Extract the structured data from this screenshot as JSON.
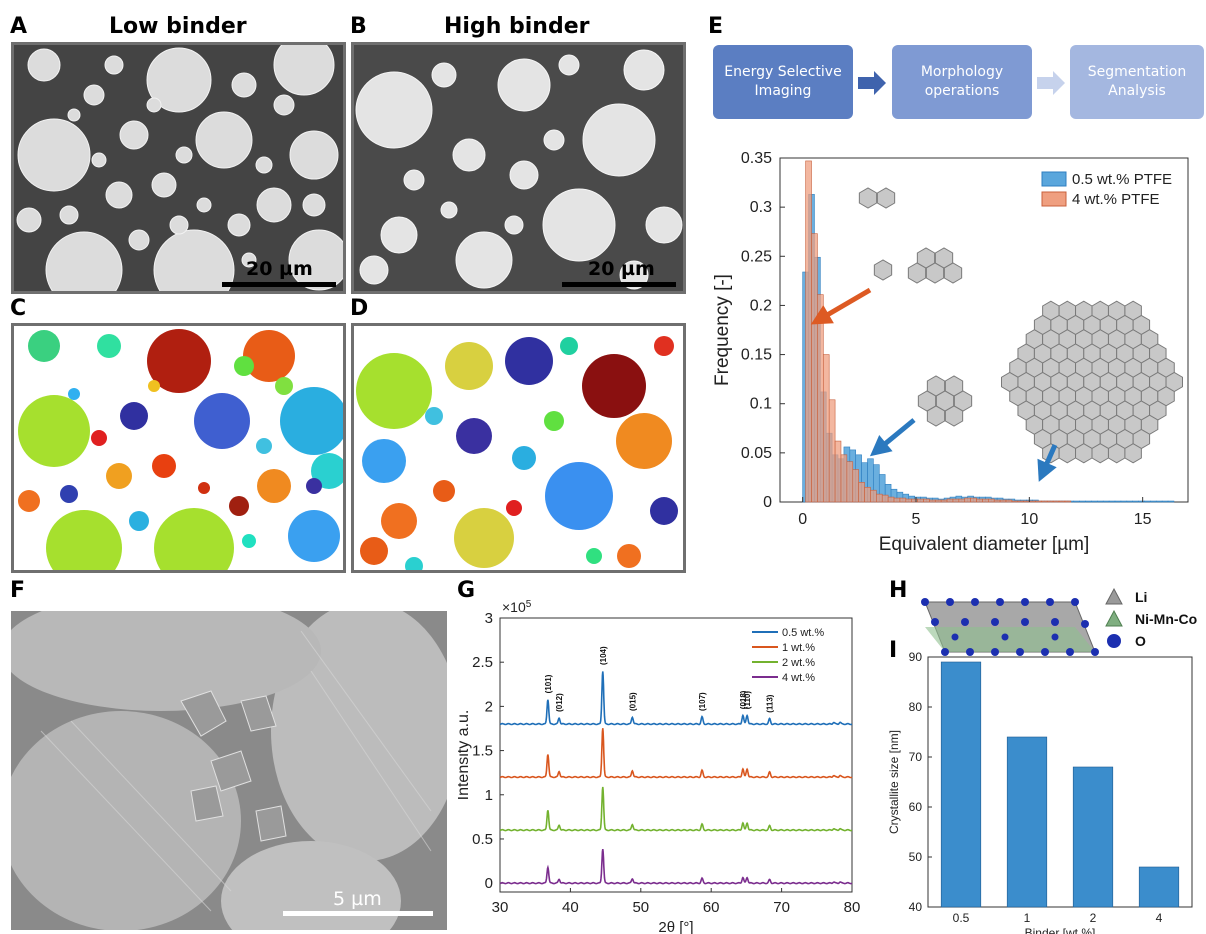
{
  "panels": {
    "A": {
      "letter": "A",
      "title": "Low binder",
      "scalebar": "20 µm"
    },
    "B": {
      "letter": "B",
      "title": "High binder",
      "scalebar": "20 µm"
    },
    "C": {
      "letter": "C"
    },
    "D": {
      "letter": "D"
    },
    "E": {
      "letter": "E"
    },
    "F": {
      "letter": "F",
      "scalebar": "5 µm"
    },
    "G": {
      "letter": "G"
    },
    "H": {
      "letter": "H"
    },
    "I": {
      "letter": "I"
    }
  },
  "flow": {
    "steps": [
      "Energy Selective Imaging",
      "Morphology operations",
      "Segmentation Analysis"
    ],
    "colors": [
      "#5b7ec2",
      "#7f9ad3",
      "#a4b7e0"
    ]
  },
  "crystal": {
    "legend": [
      {
        "label": "Li",
        "color": "#9a9a9a"
      },
      {
        "label": "Ni-Mn-Co",
        "color": "#7fae80"
      },
      {
        "label": "O",
        "color": "#1c2fb0"
      }
    ]
  },
  "chart_data": [
    {
      "type": "bar",
      "panel": "E",
      "xlabel": "Equivalent diameter [µm]",
      "ylabel": "Frequency [-]",
      "xlim": [
        -1,
        17
      ],
      "ylim": [
        0,
        0.35
      ],
      "xticks": [
        0,
        5,
        10,
        15
      ],
      "yticks": [
        0,
        0.05,
        0.1,
        0.15,
        0.2,
        0.25,
        0.3,
        0.35
      ],
      "ytick_labels": [
        "0",
        "0.05",
        "0.1",
        "0.15",
        "0.2",
        "0.25",
        "0.3",
        "0.35"
      ],
      "bin_width": 0.26,
      "legend_position": "top-right",
      "series": [
        {
          "name": "0.5 wt.% PTFE",
          "color": "#5aa6dc",
          "edge": "#2f7fc0",
          "bins_start": 0.0,
          "values": [
            0.234,
            0.313,
            0.249,
            0.112,
            0.07,
            0.048,
            0.044,
            0.056,
            0.053,
            0.048,
            0.04,
            0.044,
            0.038,
            0.028,
            0.018,
            0.013,
            0.01,
            0.008,
            0.006,
            0.005,
            0.005,
            0.004,
            0.004,
            0.003,
            0.004,
            0.005,
            0.006,
            0.005,
            0.006,
            0.005,
            0.005,
            0.005,
            0.004,
            0.004,
            0.003,
            0.003,
            0.002,
            0.002,
            0.002,
            0.002,
            0.001,
            0.001,
            0.001,
            0.001,
            0.001,
            0.001,
            0.001,
            0.001,
            0.001,
            0.001,
            0.001,
            0.001,
            0.001,
            0.001,
            0.001,
            0.001,
            0.001,
            0.001,
            0.001,
            0.001,
            0.001,
            0.001,
            0.001
          ]
        },
        {
          "name": "4 wt.% PTFE",
          "color": "#ef9f80",
          "edge": "#c8603c",
          "bins_start": 0.13,
          "values": [
            0.347,
            0.273,
            0.211,
            0.15,
            0.104,
            0.062,
            0.048,
            0.041,
            0.033,
            0.02,
            0.015,
            0.012,
            0.008,
            0.007,
            0.005,
            0.004,
            0.004,
            0.003,
            0.003,
            0.003,
            0.003,
            0.002,
            0.002,
            0.002,
            0.003,
            0.003,
            0.003,
            0.004,
            0.004,
            0.003,
            0.003,
            0.003,
            0.002,
            0.002,
            0.002,
            0.001,
            0.001,
            0.001,
            0.001,
            0.001,
            0.001,
            0.001,
            0.001,
            0.001,
            0.001
          ]
        }
      ]
    },
    {
      "type": "line",
      "panel": "G",
      "xlabel": "2θ [°]",
      "ylabel": "Intensity a.u.",
      "exponent_label": "×10",
      "exponent_power": "5",
      "xlim": [
        30,
        80
      ],
      "ylim": [
        -0.1,
        3.0
      ],
      "xticks": [
        30,
        40,
        50,
        60,
        70,
        80
      ],
      "yticks": [
        0,
        0.5,
        1,
        1.5,
        2,
        2.5,
        3
      ],
      "ytick_labels": [
        "0",
        "0.5",
        "1",
        "1.5",
        "2",
        "2.5",
        "3"
      ],
      "legend_position": "top-right",
      "peaks": [
        {
          "pos": 36.8,
          "height": 0.28,
          "label": "(101)"
        },
        {
          "pos": 38.4,
          "height": 0.07,
          "label": "(012)"
        },
        {
          "pos": 44.6,
          "height": 0.6,
          "label": "(104)"
        },
        {
          "pos": 48.8,
          "height": 0.08,
          "label": "(015)"
        },
        {
          "pos": 58.7,
          "height": 0.08,
          "label": "(107)"
        },
        {
          "pos": 64.5,
          "height": 0.1,
          "label": "(018)"
        },
        {
          "pos": 65.1,
          "height": 0.1,
          "label": "(110)"
        },
        {
          "pos": 68.3,
          "height": 0.06,
          "label": "(113)"
        },
        {
          "pos": 77.4,
          "height": 0.02,
          "label": ""
        },
        {
          "pos": 78.3,
          "height": 0.02,
          "label": ""
        }
      ],
      "series": [
        {
          "name": "0.5 wt.%",
          "color": "#1f6fb8",
          "offset": 1.8,
          "scale": 1.0
        },
        {
          "name": "1 wt.%",
          "color": "#d9561e",
          "offset": 1.2,
          "scale": 0.93
        },
        {
          "name": "2 wt.%",
          "color": "#73b22f",
          "offset": 0.6,
          "scale": 0.82
        },
        {
          "name": "4 wt.%",
          "color": "#7b2d8e",
          "offset": 0.0,
          "scale": 0.65
        }
      ]
    },
    {
      "type": "bar",
      "panel": "I",
      "xlabel": "Binder [wt.%]",
      "ylabel": "Crystallite size [nm]",
      "categories": [
        "0.5",
        "1",
        "2",
        "4"
      ],
      "values": [
        89,
        74,
        68,
        48
      ],
      "ylim": [
        40,
        90
      ],
      "yticks": [
        40,
        50,
        60,
        70,
        80,
        90
      ],
      "color": "#3b8dcc"
    }
  ]
}
